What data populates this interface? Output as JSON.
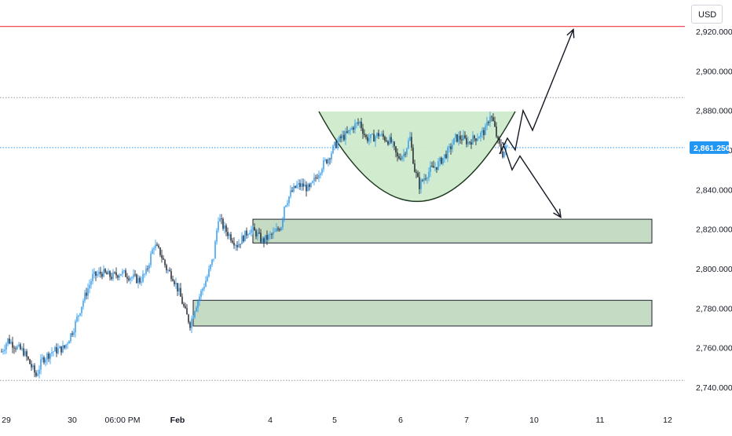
{
  "currency": "USD",
  "colors": {
    "background": "#ffffff",
    "candle_up": "#2196f3",
    "candle_down": "#131722",
    "resistance_line": "#f23645",
    "level_dotted": "#9598a1",
    "current_price_line": "#2196f3",
    "current_price_badge": "#2196f3",
    "cup_fill": "#cfeacc",
    "zone_fill": "#c6dbc4",
    "zone_border": "#1e222d",
    "arrow": "#131722",
    "axis_text": "#131722"
  },
  "chart_data": {
    "type": "candlestick",
    "y_axis": {
      "range": [
        2735,
        2929
      ],
      "tick_labels": [
        "2,920.000",
        "2,900.000",
        "2,880.000",
        "2,860.000",
        "2,840.000",
        "2,820.000",
        "2,800.000",
        "2,780.000",
        "2,760.000",
        "2,740.000"
      ],
      "tick_values": [
        2920,
        2900,
        2880,
        2860,
        2840,
        2820,
        2800,
        2780,
        2760,
        2740
      ]
    },
    "x_axis": {
      "range_bars": [
        0,
        425
      ],
      "tick_labels": [
        {
          "label": "29",
          "bar": 3
        },
        {
          "label": "30",
          "bar": 45
        },
        {
          "label": "06:00 PM",
          "bar": 77
        },
        {
          "label": "Feb",
          "bar": 112
        },
        {
          "label": "4",
          "bar": 171
        },
        {
          "label": "5",
          "bar": 212
        },
        {
          "label": "6",
          "bar": 254
        },
        {
          "label": "7",
          "bar": 296
        },
        {
          "label": "10",
          "bar": 339
        },
        {
          "label": "11",
          "bar": 381
        },
        {
          "label": "12",
          "bar": 424
        }
      ]
    },
    "current_price": {
      "value": 2861.25,
      "label": "2,861.250"
    },
    "resistance_level": 2922.5,
    "dotted_levels": [
      2886.5,
      2743.5
    ],
    "price_path": [
      [
        0,
        2758
      ],
      [
        4,
        2764
      ],
      [
        10,
        2760
      ],
      [
        14,
        2758
      ],
      [
        18,
        2752
      ],
      [
        22,
        2746
      ],
      [
        26,
        2754
      ],
      [
        32,
        2758
      ],
      [
        40,
        2760
      ],
      [
        46,
        2770
      ],
      [
        52,
        2784
      ],
      [
        58,
        2796
      ],
      [
        64,
        2798
      ],
      [
        70,
        2796
      ],
      [
        76,
        2798
      ],
      [
        82,
        2796
      ],
      [
        88,
        2794
      ],
      [
        92,
        2798
      ],
      [
        97,
        2812
      ],
      [
        101,
        2808
      ],
      [
        105,
        2800
      ],
      [
        109,
        2796
      ],
      [
        113,
        2788
      ],
      [
        117,
        2778
      ],
      [
        120,
        2772
      ],
      [
        123,
        2780
      ],
      [
        127,
        2788
      ],
      [
        131,
        2796
      ],
      [
        135,
        2806
      ],
      [
        138,
        2826
      ],
      [
        142,
        2820
      ],
      [
        146,
        2816
      ],
      [
        150,
        2812
      ],
      [
        154,
        2816
      ],
      [
        158,
        2820
      ],
      [
        162,
        2818
      ],
      [
        166,
        2814
      ],
      [
        170,
        2816
      ],
      [
        174,
        2818
      ],
      [
        178,
        2822
      ],
      [
        180,
        2832
      ],
      [
        184,
        2838
      ],
      [
        188,
        2842
      ],
      [
        192,
        2842
      ],
      [
        196,
        2840
      ],
      [
        200,
        2846
      ],
      [
        204,
        2852
      ],
      [
        208,
        2856
      ],
      [
        212,
        2862
      ],
      [
        216,
        2866
      ],
      [
        220,
        2868
      ],
      [
        224,
        2872
      ],
      [
        228,
        2874
      ],
      [
        232,
        2866
      ],
      [
        236,
        2866
      ],
      [
        240,
        2868
      ],
      [
        244,
        2866
      ],
      [
        248,
        2864
      ],
      [
        252,
        2856
      ],
      [
        256,
        2858
      ],
      [
        260,
        2866
      ],
      [
        263,
        2850
      ],
      [
        266,
        2842
      ],
      [
        269,
        2846
      ],
      [
        273,
        2850
      ],
      [
        277,
        2852
      ],
      [
        281,
        2856
      ],
      [
        285,
        2860
      ],
      [
        289,
        2866
      ],
      [
        293,
        2866
      ],
      [
        297,
        2864
      ],
      [
        301,
        2866
      ],
      [
        305,
        2868
      ],
      [
        308,
        2870
      ],
      [
        311,
        2878
      ],
      [
        313,
        2874
      ],
      [
        316,
        2864
      ],
      [
        319,
        2858
      ],
      [
        322,
        2862
      ]
    ],
    "cup_top": 2879.5,
    "cup_bottom": 2834,
    "cup_x_range": [
      202,
      327
    ],
    "demand_zones": [
      {
        "top": 2825,
        "bottom": 2813,
        "x_from": 160,
        "x_to": 414
      },
      {
        "top": 2784,
        "bottom": 2771,
        "x_from": 122,
        "x_to": 414
      }
    ],
    "projection_up": [
      [
        317,
        2858
      ],
      [
        322,
        2866
      ],
      [
        327,
        2860
      ],
      [
        332,
        2880
      ],
      [
        338,
        2870
      ],
      [
        364,
        2921
      ]
    ],
    "projection_down": [
      [
        319,
        2864
      ],
      [
        325,
        2850
      ],
      [
        330,
        2857
      ],
      [
        356,
        2826
      ]
    ]
  }
}
